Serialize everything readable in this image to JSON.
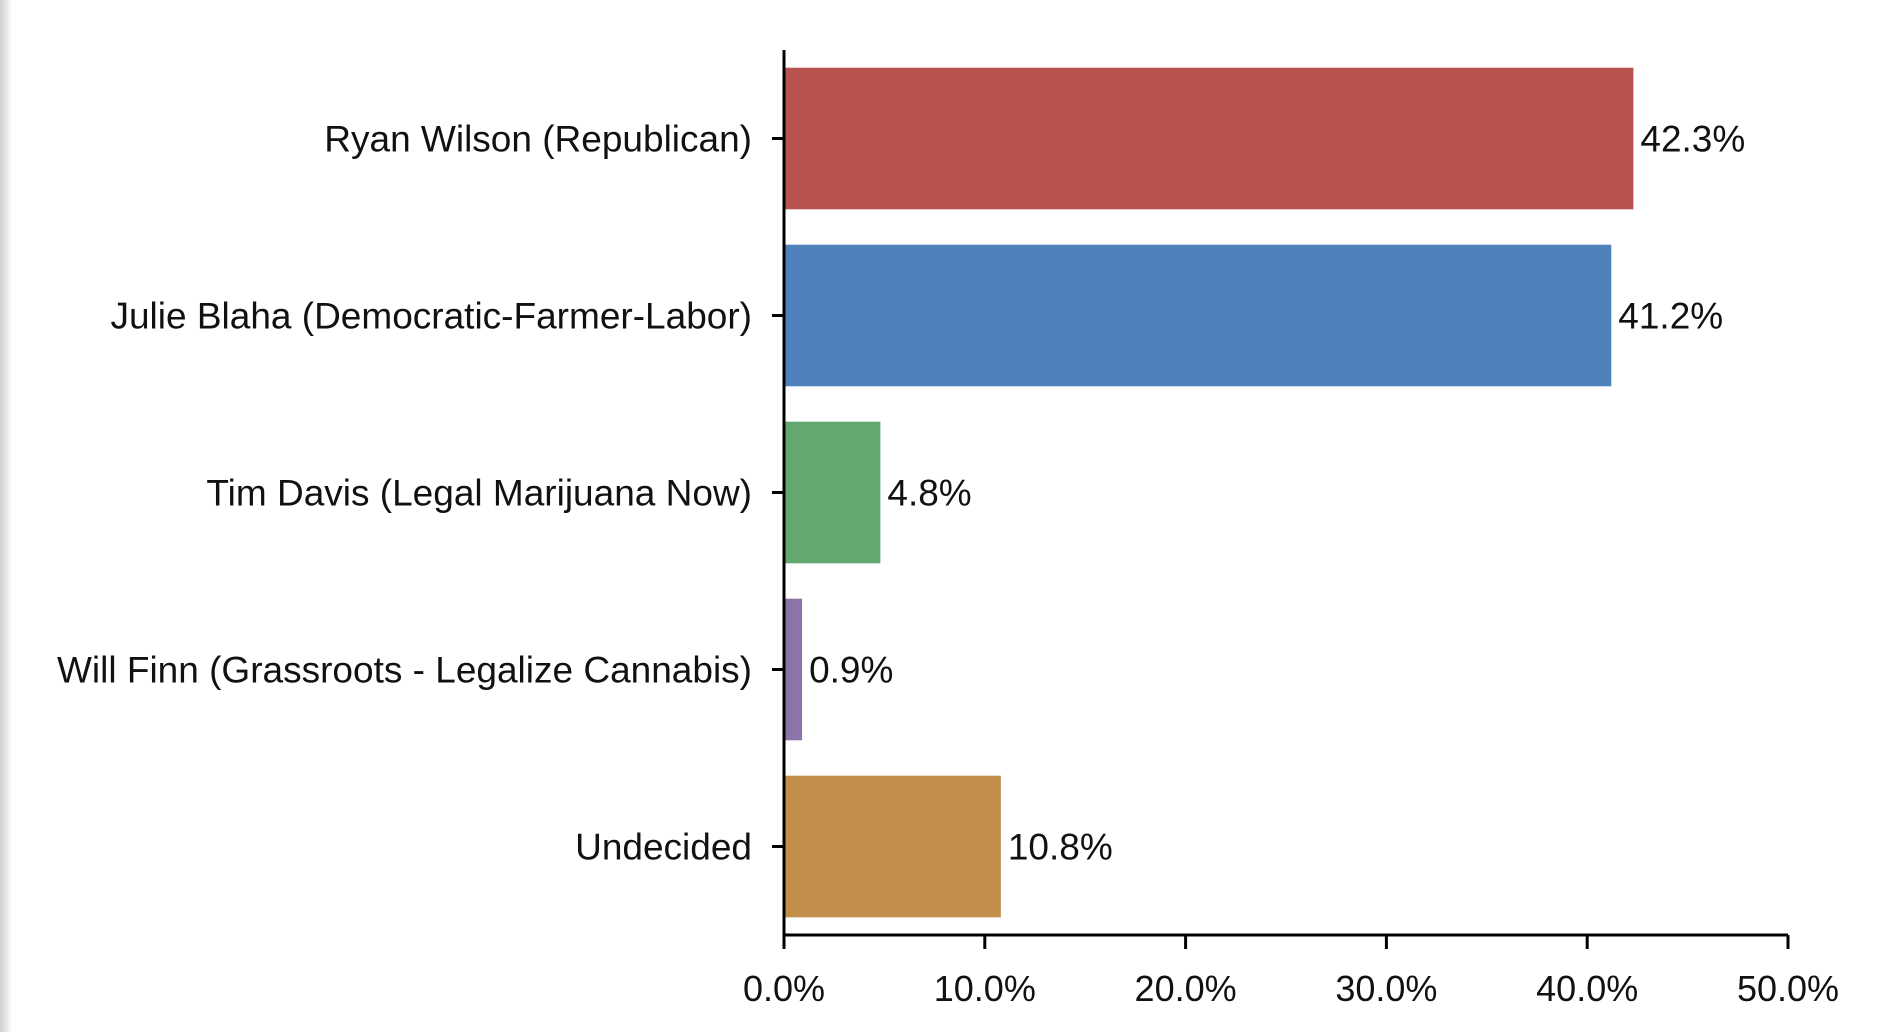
{
  "chart_data": {
    "type": "bar",
    "orientation": "horizontal",
    "title": "",
    "xlabel": "",
    "ylabel": "",
    "xlim": [
      0,
      50
    ],
    "grid": false,
    "legend": "none",
    "categories": [
      "Ryan Wilson (Republican)",
      "Julie Blaha (Democratic-Farmer-Labor)",
      "Tim Davis (Legal Marijuana Now)",
      "Will Finn (Grassroots - Legalize Cannabis)",
      "Undecided"
    ],
    "values": [
      42.3,
      41.2,
      4.8,
      0.9,
      10.8
    ],
    "value_labels": [
      "42.3%",
      "41.2%",
      "4.8%",
      "0.9%",
      "10.8%"
    ],
    "colors": [
      "#b85450",
      "#4f81bd",
      "#63a86e",
      "#8c73a8",
      "#c28f4b"
    ],
    "x_ticks": [
      0,
      10,
      20,
      30,
      40,
      50
    ],
    "x_tick_labels": [
      "0.0%",
      "10.0%",
      "20.0%",
      "30.0%",
      "40.0%",
      "50.0%"
    ]
  }
}
